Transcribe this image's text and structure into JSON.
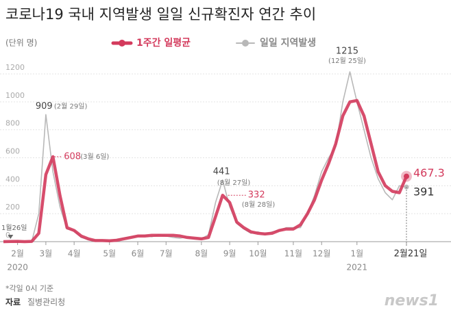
{
  "chart_data": {
    "type": "line",
    "title": "코로나19 국내 지역발생 일일 신규확진자 연간 추이",
    "unit_label": "(단위 명)",
    "categories": [
      null,
      null,
      "2월",
      null,
      null,
      null,
      "3월",
      null,
      null,
      null,
      "4월",
      null,
      null,
      null,
      null,
      "5월",
      null,
      null,
      null,
      "6월",
      null,
      null,
      null,
      "7월",
      null,
      null,
      null,
      null,
      "8월",
      null,
      null,
      null,
      "9월",
      null,
      null,
      null,
      "10월",
      null,
      null,
      null,
      null,
      "11월",
      null,
      null,
      null,
      "12월",
      null,
      null,
      null,
      null,
      "1월",
      null,
      null,
      null,
      null,
      null,
      null,
      "2월21일"
    ],
    "years": [
      null,
      null,
      "2020",
      null,
      null,
      null,
      null,
      null,
      null,
      null,
      null,
      null,
      null,
      null,
      null,
      null,
      null,
      null,
      null,
      null,
      null,
      null,
      null,
      null,
      null,
      null,
      null,
      null,
      null,
      null,
      null,
      null,
      null,
      null,
      null,
      null,
      null,
      null,
      null,
      null,
      null,
      null,
      null,
      null,
      null,
      null,
      null,
      null,
      null,
      null,
      "2021",
      null,
      null,
      null,
      null,
      null,
      null,
      null
    ],
    "series": [
      {
        "name": "1주간 일평균",
        "color": "#d33a5c",
        "values": [
          0,
          1,
          2,
          0,
          2,
          60,
          480,
          608,
          330,
          100,
          80,
          40,
          20,
          8,
          8,
          6,
          10,
          20,
          30,
          40,
          40,
          45,
          45,
          45,
          45,
          40,
          30,
          25,
          20,
          30,
          180,
          332,
          280,
          140,
          100,
          70,
          60,
          55,
          60,
          80,
          90,
          90,
          120,
          200,
          300,
          440,
          560,
          700,
          900,
          1000,
          1010,
          900,
          700,
          500,
          400,
          360,
          350,
          467.3
        ]
      },
      {
        "name": "일일 지역발생",
        "color": "#b8b8b8",
        "values": [
          1,
          0,
          3,
          0,
          0,
          200,
          909,
          500,
          250,
          90,
          80,
          30,
          15,
          8,
          10,
          3,
          15,
          25,
          35,
          40,
          45,
          35,
          50,
          40,
          30,
          25,
          35,
          20,
          20,
          50,
          280,
          441,
          250,
          130,
          90,
          60,
          70,
          50,
          70,
          80,
          100,
          100,
          100,
          200,
          330,
          500,
          600,
          680,
          1000,
          1215,
          1000,
          800,
          600,
          450,
          350,
          300,
          400,
          391
        ]
      }
    ],
    "annotation_dates": [
      "(2월 29일)",
      "(3월 6일)",
      "(8월 27일)",
      "(8월 28일)",
      "(12월 25일)"
    ],
    "first_case_label": "1월26일",
    "ylim": [
      0,
      1200
    ],
    "yticks": [
      0,
      200,
      400,
      600,
      800,
      1000,
      1200
    ],
    "grid": true,
    "footnote": "*각일 0시 기준",
    "source_label": "자료",
    "source": "질병관리청",
    "logo": "news1"
  }
}
